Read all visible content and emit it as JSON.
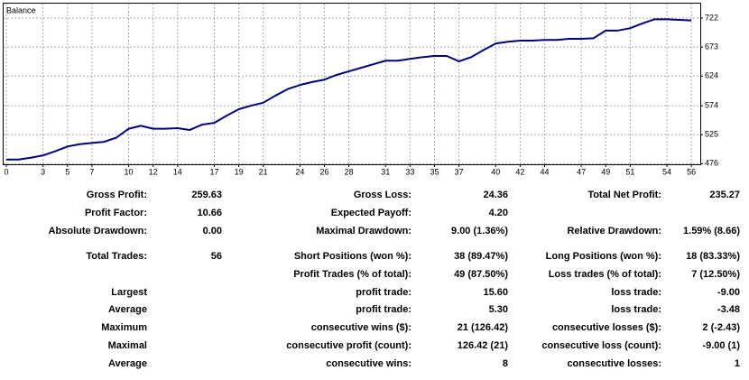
{
  "chart_data": {
    "type": "line",
    "title": "Balance",
    "x": [
      0,
      1,
      2,
      3,
      4,
      5,
      6,
      7,
      8,
      9,
      10,
      11,
      12,
      13,
      14,
      15,
      16,
      17,
      18,
      19,
      20,
      21,
      22,
      23,
      24,
      25,
      26,
      27,
      28,
      29,
      30,
      31,
      32,
      33,
      34,
      35,
      36,
      37,
      38,
      39,
      40,
      41,
      42,
      43,
      44,
      45,
      46,
      47,
      48,
      49,
      50,
      51,
      52,
      53,
      54,
      55,
      56
    ],
    "series": [
      {
        "name": "Balance",
        "color": "#00007f",
        "values": [
          483,
          483,
          486,
          490,
          497,
          505,
          509,
          511,
          513,
          520,
          535,
          540,
          535,
          535,
          536,
          533,
          542,
          545,
          557,
          568,
          574,
          579,
          591,
          602,
          609,
          614,
          618,
          626,
          632,
          638,
          644,
          650,
          650,
          653,
          656,
          658,
          658,
          649,
          656,
          668,
          679,
          682,
          684,
          684,
          685,
          685,
          687,
          687,
          688,
          701,
          701,
          705,
          713,
          720,
          720,
          719,
          718
        ]
      }
    ],
    "xlim": [
      0,
      56.8
    ],
    "xticks": [
      0,
      3,
      5,
      7,
      10,
      12,
      14,
      17,
      19,
      21,
      24,
      26,
      28,
      31,
      33,
      35,
      37,
      40,
      42,
      44,
      47,
      49,
      51,
      54,
      56
    ],
    "ylim": [
      475,
      748
    ],
    "yticks": [
      476,
      525,
      574,
      624,
      673,
      722
    ],
    "grid": true
  },
  "stats": {
    "rows": [
      [
        "Gross Profit:",
        "259.63",
        "Gross Loss:",
        "24.36",
        "Total Net Profit:",
        "235.27"
      ],
      [
        "Profit Factor:",
        "10.66",
        "Expected Payoff:",
        "4.20",
        null,
        null
      ],
      [
        "Absolute Drawdown:",
        "0.00",
        "Maximal Drawdown:",
        "9.00 (1.36%)",
        "Relative Drawdown:",
        "1.59% (8.66)"
      ],
      [
        "Total Trades:",
        "56",
        "Short Positions (won %):",
        "38 (89.47%)",
        "Long Positions (won %):",
        "18 (83.33%)"
      ],
      [
        null,
        null,
        "Profit Trades (% of total):",
        "49 (87.50%)",
        "Loss trades (% of total):",
        "7 (12.50%)"
      ],
      [
        "Largest",
        null,
        "profit trade:",
        "15.60",
        "loss trade:",
        "-9.00"
      ],
      [
        "Average",
        null,
        "profit trade:",
        "5.30",
        "loss trade:",
        "-3.48"
      ],
      [
        "Maximum",
        null,
        "consecutive wins ($):",
        "21 (126.42)",
        "consecutive losses ($):",
        "2 (-2.43)"
      ],
      [
        "Maximal",
        null,
        "consecutive profit (count):",
        "126.42 (21)",
        "consecutive loss (count):",
        "-9.00 (1)"
      ],
      [
        "Average",
        null,
        "consecutive wins:",
        "8",
        "consecutive losses:",
        "1"
      ]
    ]
  }
}
